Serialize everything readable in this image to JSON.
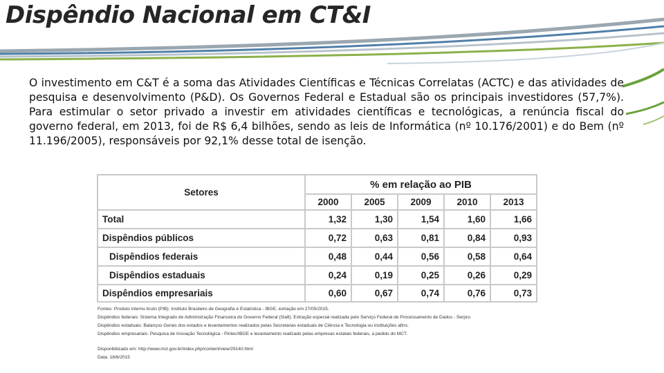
{
  "header": {
    "title": "Dispêndio Nacional em CT&I"
  },
  "body": {
    "paragraph": "O investimento em C&T é a soma das Atividades Científicas e Técnicas Correlatas (ACTC) e das atividades de pesquisa e desenvolvimento (P&D). Os Governos Federal e Estadual são os principais investidores (57,7%). Para estimular o setor privado a investir em atividades científicas e tecnológicas, a renúncia fiscal do governo federal, em 2013, foi de R$ 6,4 bilhões, sendo as leis de Informática (nº 10.176/2001) e do Bem (nº 11.196/2005), responsáveis por 92,1% desse total de isenção."
  },
  "table": {
    "row_header": "Setores",
    "group_header": "% em relação ao PIB",
    "columns": [
      "2000",
      "2005",
      "2009",
      "2010",
      "2013"
    ],
    "rows": [
      {
        "label": "Total",
        "values": [
          "1,32",
          "1,30",
          "1,54",
          "1,60",
          "1,66"
        ]
      },
      {
        "label": "Dispêndios públicos",
        "values": [
          "0,72",
          "0,63",
          "0,81",
          "0,84",
          "0,93"
        ]
      },
      {
        "label": "Dispêndios federais",
        "values": [
          "0,48",
          "0,44",
          "0,56",
          "0,58",
          "0,64"
        ]
      },
      {
        "label": "Dispêndios estaduais",
        "values": [
          "0,24",
          "0,19",
          "0,25",
          "0,26",
          "0,29"
        ]
      },
      {
        "label": "Dispêndios empresariais",
        "values": [
          "0,60",
          "0,67",
          "0,74",
          "0,76",
          "0,73"
        ]
      }
    ]
  },
  "footnotes": [
    "Fontes: Produto interno bruto (PIB): Instituto Brasileiro de Geografia e Estatística - IBGE, extração em 27/05/2015.",
    "Dispêndios federais: Sistema Integrado de Administração Financeira do Governo Federal (Siafi). Extração especial realizada pelo Serviço Federal de Processamento de Dados - Serpro.",
    "Dispêndios estaduais: Balanços Gerais dos estados e levantamentos realizados pelas Secretarias estaduais de Ciência e Tecnologia ou instituições afins.",
    "Dispêndios empresariais: Pesquisa de Inovação Tecnológica - Pintec/IBGE e levantamento realizado pelas empresas estatais federais, a pedido do MCT.",
    "Disponibilizado em: http://www.mct.gov.br/index.php/content/view/29140.html",
    "Data: 18/6/2015"
  ]
}
